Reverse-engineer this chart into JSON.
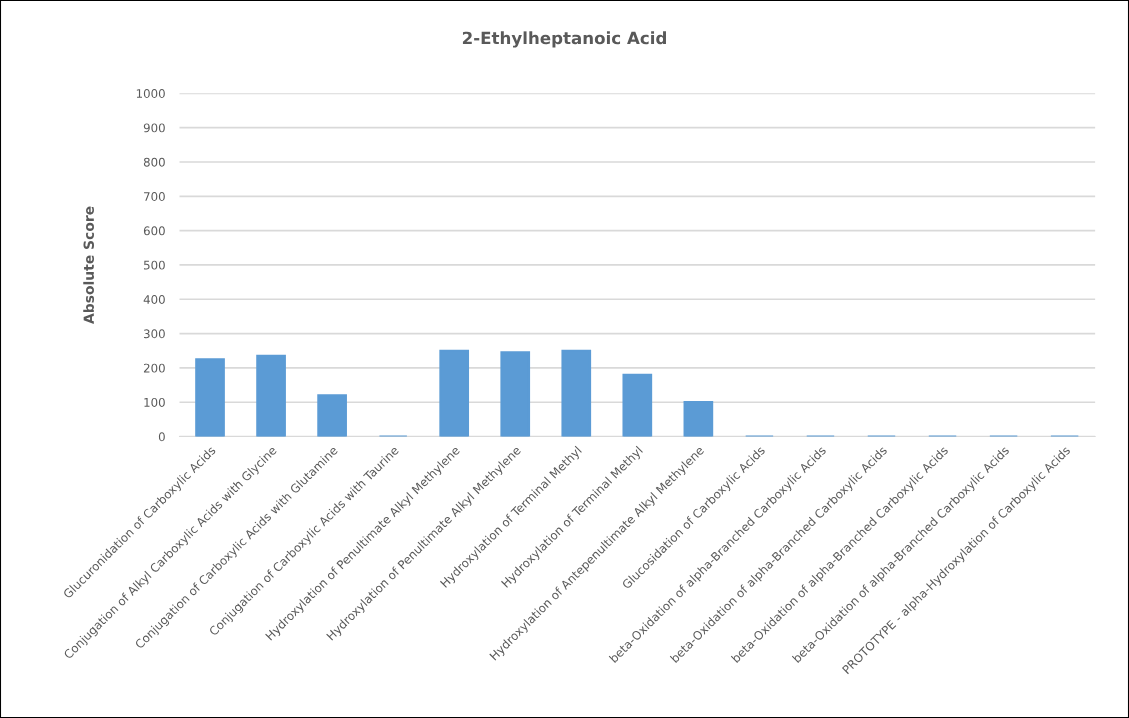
{
  "chart_data": {
    "type": "bar",
    "title": "2-Ethylheptanoic Acid",
    "ylabel": "Absolute Score",
    "categories": [
      "Glucuronidation of Carboxylic Acids",
      "Conjugation of Alkyl Carboxylic Acids with Glycine",
      "Conjugation of Carboxylic Acids with Glutamine",
      "Conjugation of Carboxylic Acids with Taurine",
      "Hydroxylation of Penultimate Alkyl Methylene",
      "Hydroxylation of Penultimate Alkyl Methylene",
      "Hydroxylation of Terminal Methyl",
      "Hydroxylation of Terminal Methyl",
      "Hydroxylation of Antepenultimate Alkyl Methylene",
      "Glucosidation of Carboxylic Acids",
      "beta-Oxidation of alpha-Branched Carboxylic Acids",
      "beta-Oxidation of alpha-Branched Carboxylic Acids",
      "beta-Oxidation of alpha-Branched Carboxylic Acids",
      "beta-Oxidation of alpha-Branched Carboxylic Acids",
      "PROTOTYPE - alpha-Hydroxylation of Carboxylic Acids"
    ],
    "values": [
      225,
      235,
      120,
      0,
      250,
      245,
      250,
      180,
      100,
      0,
      0,
      0,
      0,
      0,
      0
    ],
    "color": "#5b9bd5",
    "ylim": [
      0,
      1000
    ],
    "yticks": [
      0,
      100,
      200,
      300,
      400,
      500,
      600,
      700,
      800,
      900,
      1000
    ],
    "grid": "y"
  }
}
